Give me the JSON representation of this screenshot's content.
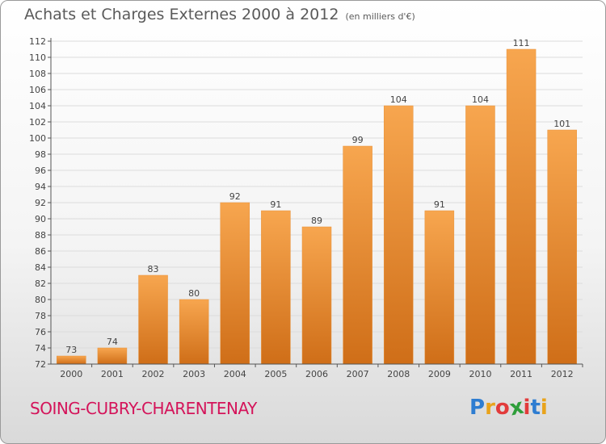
{
  "header": {
    "title": "Achats et Charges Externes 2000 à 2012",
    "subtitle": "(en milliers d'€)"
  },
  "footer": {
    "city": "SOING-CUBRY-CHARENTENAY",
    "logo_letters": [
      "P",
      "r",
      "o",
      "x",
      "i",
      "t",
      "i"
    ],
    "logo_colors": [
      "#2e7dd1",
      "#e9a31b",
      "#e23b3b",
      "#2e9e3a",
      "#e23b3b",
      "#2e7dd1",
      "#e9a31b"
    ]
  },
  "chart_data": {
    "type": "bar",
    "title": "Achats et Charges Externes 2000 à 2012",
    "subtitle": "(en milliers d'€)",
    "categories": [
      "2000",
      "2001",
      "2002",
      "2003",
      "2004",
      "2005",
      "2006",
      "2007",
      "2008",
      "2009",
      "2010",
      "2011",
      "2012"
    ],
    "values": [
      73,
      74,
      83,
      80,
      92,
      91,
      89,
      99,
      104,
      91,
      104,
      111,
      101
    ],
    "ylim": [
      72,
      112
    ],
    "yticks": [
      72,
      74,
      76,
      78,
      80,
      82,
      84,
      86,
      88,
      90,
      92,
      94,
      96,
      98,
      100,
      102,
      104,
      106,
      108,
      110,
      112
    ],
    "grid": true,
    "colors": {
      "bar_light": "#f7a64f",
      "bar_dark": "#cf6e18",
      "grid": "#dcdcdc"
    }
  }
}
